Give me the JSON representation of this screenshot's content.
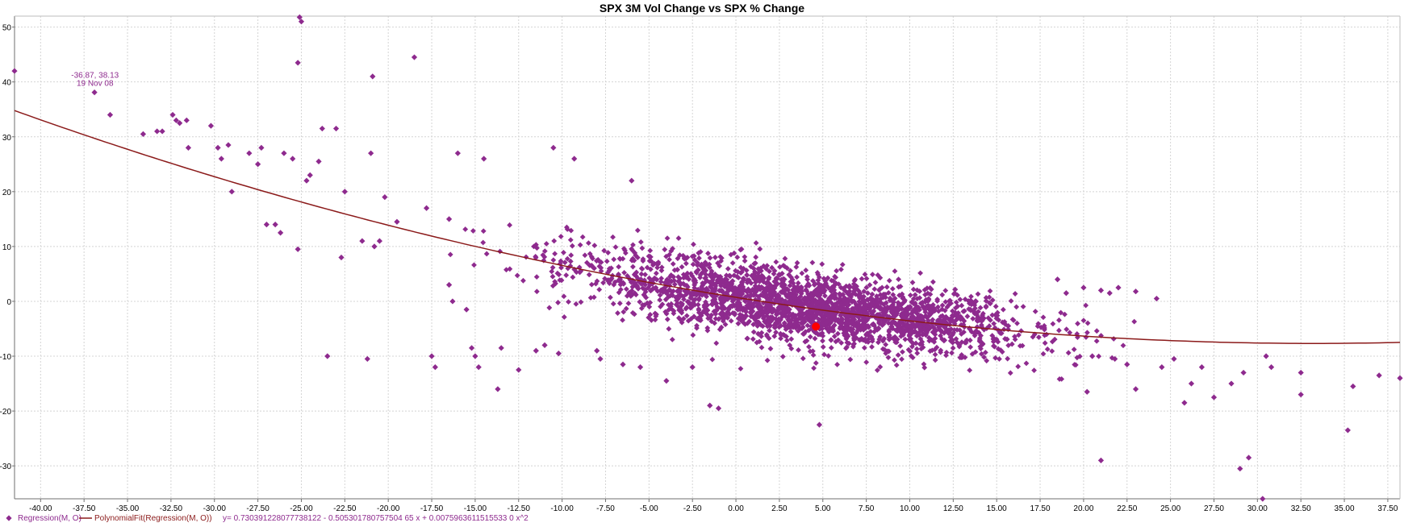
{
  "chart_data": {
    "type": "scatter",
    "title": "SPX 3M Vol Change vs SPX % Change",
    "xlabel": "",
    "ylabel": "",
    "xlim": [
      -41.5,
      38.2
    ],
    "ylim": [
      -36,
      52
    ],
    "grid": true,
    "x_ticks": [
      "-40.00",
      "-37.50",
      "-35.00",
      "-32.50",
      "-30.00",
      "-27.50",
      "-25.00",
      "-22.50",
      "-20.00",
      "-17.50",
      "-15.00",
      "-12.50",
      "-10.00",
      "-7.50",
      "-5.00",
      "-2.50",
      "0.00",
      "2.50",
      "5.00",
      "7.50",
      "10.00",
      "12.50",
      "15.00",
      "17.50",
      "20.00",
      "22.50",
      "25.00",
      "27.50",
      "30.00",
      "32.50",
      "35.00",
      "37.50"
    ],
    "y_ticks": [
      "50",
      "40",
      "30",
      "20",
      "10",
      "0",
      "-10",
      "-20",
      "-30"
    ],
    "series": [
      {
        "name": "Regression(M, O)",
        "type": "scatter",
        "color": "#8e2a8e",
        "marker": "diamond",
        "cloud": {
          "cx": 4.0,
          "cy": -1.5,
          "sx": 6.5,
          "count": 2600,
          "slope": -0.5,
          "curvature": 0.0075,
          "intercept": 0.73,
          "resid_sd": 3.2,
          "description": "dense cluster of points following the regression trend"
        },
        "points": [
          {
            "x": -41.5,
            "y": 42
          },
          {
            "x": -36.9,
            "y": 38.1
          },
          {
            "x": -36,
            "y": 34
          },
          {
            "x": -34.1,
            "y": 30.5
          },
          {
            "x": -33.3,
            "y": 31
          },
          {
            "x": -33,
            "y": 31
          },
          {
            "x": -32.4,
            "y": 34
          },
          {
            "x": -32.2,
            "y": 33
          },
          {
            "x": -32,
            "y": 32.5
          },
          {
            "x": -31.6,
            "y": 33
          },
          {
            "x": -31.5,
            "y": 28
          },
          {
            "x": -30.2,
            "y": 32
          },
          {
            "x": -29.8,
            "y": 28
          },
          {
            "x": -29.6,
            "y": 26
          },
          {
            "x": -29.2,
            "y": 28.5
          },
          {
            "x": -29,
            "y": 20
          },
          {
            "x": -28,
            "y": 27
          },
          {
            "x": -27.5,
            "y": 25
          },
          {
            "x": -27.3,
            "y": 28
          },
          {
            "x": -27,
            "y": 14
          },
          {
            "x": -26.5,
            "y": 14
          },
          {
            "x": -26.2,
            "y": 12.5
          },
          {
            "x": -26,
            "y": 27
          },
          {
            "x": -25.5,
            "y": 26
          },
          {
            "x": -25.2,
            "y": 9.5
          },
          {
            "x": -25.1,
            "y": 51.8
          },
          {
            "x": -25,
            "y": 51
          },
          {
            "x": -25.2,
            "y": 43.5
          },
          {
            "x": -24.7,
            "y": 22
          },
          {
            "x": -24.5,
            "y": 23
          },
          {
            "x": -24,
            "y": 25.5
          },
          {
            "x": -23.8,
            "y": 31.5
          },
          {
            "x": -23.5,
            "y": -10
          },
          {
            "x": -23,
            "y": 31.5
          },
          {
            "x": -22.7,
            "y": 8
          },
          {
            "x": -22.5,
            "y": 20
          },
          {
            "x": -21.5,
            "y": 11
          },
          {
            "x": -21.2,
            "y": -10.5
          },
          {
            "x": -21,
            "y": 27
          },
          {
            "x": -20.9,
            "y": 41
          },
          {
            "x": -20.8,
            "y": 10
          },
          {
            "x": -20.5,
            "y": 11
          },
          {
            "x": -20.2,
            "y": 19
          },
          {
            "x": -19.5,
            "y": 14.5
          },
          {
            "x": -18.5,
            "y": 44.5
          },
          {
            "x": -17.8,
            "y": 17
          },
          {
            "x": -17.5,
            "y": -10
          },
          {
            "x": -17.3,
            "y": -12
          },
          {
            "x": -16.5,
            "y": 15
          },
          {
            "x": -16.5,
            "y": 3
          },
          {
            "x": -16.3,
            "y": 0
          },
          {
            "x": -16,
            "y": 27
          },
          {
            "x": -15.5,
            "y": -1.5
          },
          {
            "x": -15.2,
            "y": -8.5
          },
          {
            "x": -15,
            "y": -10
          },
          {
            "x": -14.8,
            "y": -12
          },
          {
            "x": -14.5,
            "y": 26
          },
          {
            "x": -13.7,
            "y": -16
          },
          {
            "x": -13.5,
            "y": -8.5
          },
          {
            "x": -12.5,
            "y": -12.5
          },
          {
            "x": -11.5,
            "y": -9
          },
          {
            "x": -11,
            "y": -8
          },
          {
            "x": -10.5,
            "y": 28
          },
          {
            "x": -10.2,
            "y": -9.5
          },
          {
            "x": -9.3,
            "y": 26
          },
          {
            "x": -8,
            "y": -9
          },
          {
            "x": -7.8,
            "y": -10.5
          },
          {
            "x": -6.5,
            "y": -11.5
          },
          {
            "x": -6,
            "y": 22
          },
          {
            "x": -5.5,
            "y": -12
          },
          {
            "x": -4,
            "y": -14.5
          },
          {
            "x": -2.5,
            "y": -12
          },
          {
            "x": -1.5,
            "y": -19
          },
          {
            "x": -1,
            "y": -19.5
          },
          {
            "x": 4.8,
            "y": -22.5
          },
          {
            "x": 21,
            "y": -29
          },
          {
            "x": 20.2,
            "y": -16.5
          },
          {
            "x": 20.5,
            "y": -10
          },
          {
            "x": 21.8,
            "y": -10.5
          },
          {
            "x": 22.5,
            "y": -11.5
          },
          {
            "x": 23,
            "y": -16
          },
          {
            "x": 24.5,
            "y": -12
          },
          {
            "x": 25.2,
            "y": -10.5
          },
          {
            "x": 25.8,
            "y": -18.5
          },
          {
            "x": 26.2,
            "y": -15
          },
          {
            "x": 26.8,
            "y": -12
          },
          {
            "x": 27.5,
            "y": -17.5
          },
          {
            "x": 28.5,
            "y": -15
          },
          {
            "x": 29,
            "y": -30.5
          },
          {
            "x": 29.5,
            "y": -28.5
          },
          {
            "x": 29.2,
            "y": -13
          },
          {
            "x": 30.3,
            "y": -36
          },
          {
            "x": 30.5,
            "y": -10
          },
          {
            "x": 30.8,
            "y": -12
          },
          {
            "x": 32.5,
            "y": -17
          },
          {
            "x": 32.5,
            "y": -13
          },
          {
            "x": 35.2,
            "y": -23.5
          },
          {
            "x": 35.5,
            "y": -15.5
          },
          {
            "x": 37,
            "y": -13.5
          },
          {
            "x": 38.2,
            "y": -14
          },
          {
            "x": 20,
            "y": 2.5
          },
          {
            "x": 21,
            "y": 2
          },
          {
            "x": 21.5,
            "y": 1.5
          },
          {
            "x": 22,
            "y": 2.5
          },
          {
            "x": 23,
            "y": 1.8
          },
          {
            "x": 24.2,
            "y": 0.5
          },
          {
            "x": 18.5,
            "y": 4
          },
          {
            "x": 19,
            "y": 1.5
          }
        ]
      },
      {
        "name": "PolynomialFit(Regression(M, O))",
        "type": "line",
        "color": "#8b1a1a",
        "coefficients": [
          0.7303912280773812,
          -0.5053017807575046,
          0.0075963611515533
        ]
      }
    ],
    "highlight": {
      "x": 4.6,
      "y": -4.6,
      "color": "#ff0000"
    },
    "annotation": {
      "line1": "-36.87, 38.13",
      "line2": "19 Nov 08",
      "x": -36.87,
      "y": 38.13
    },
    "equation": "y= 0.730391228077738122 - 0.505301780757504 65 x + 0.0075963611515533 0 x^2"
  }
}
